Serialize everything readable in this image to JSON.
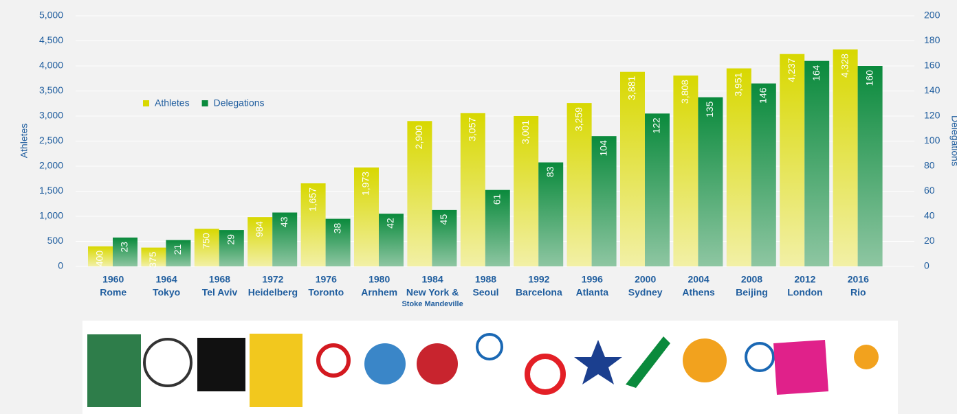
{
  "chart_data": {
    "type": "bar",
    "categories": [
      [
        "1960",
        "Rome"
      ],
      [
        "1964",
        "Tokyo"
      ],
      [
        "1968",
        "Tel Aviv"
      ],
      [
        "1972",
        "Heidelberg"
      ],
      [
        "1976",
        "Toronto"
      ],
      [
        "1980",
        "Arnhem"
      ],
      [
        "1984",
        "New York &",
        "Stoke Mandeville"
      ],
      [
        "1988",
        "Seoul"
      ],
      [
        "1992",
        "Barcelona"
      ],
      [
        "1996",
        "Atlanta"
      ],
      [
        "2000",
        "Sydney"
      ],
      [
        "2004",
        "Athens"
      ],
      [
        "2008",
        "Beijing"
      ],
      [
        "2012",
        "London"
      ],
      [
        "2016",
        "Rio"
      ]
    ],
    "series": [
      {
        "name": "Athletes",
        "color": "#d8d800",
        "values": [
          400,
          375,
          750,
          984,
          1657,
          1973,
          2900,
          3057,
          3001,
          3259,
          3881,
          3808,
          3951,
          4237,
          4328
        ],
        "value_labels": [
          "400",
          "375",
          "750",
          "984",
          "1,657",
          "1,973",
          "2,900",
          "3,057",
          "3,001",
          "3,259",
          "3,881",
          "3,808",
          "3,951",
          "4,237",
          "4,328"
        ]
      },
      {
        "name": "Delegations",
        "color": "#0a8a3c",
        "axis": "y2",
        "values": [
          23,
          21,
          29,
          43,
          38,
          42,
          45,
          61,
          83,
          104,
          122,
          135,
          146,
          164,
          160
        ]
      }
    ],
    "ylabel": "Athletes",
    "y2label": "Delegations",
    "ylim": [
      0,
      5000
    ],
    "yticks": [
      0,
      500,
      {
        "value": 1000,
        "label": "1,000"
      },
      {
        "value": 1500,
        "label": "1,500"
      },
      {
        "value": 2000,
        "label": "2,000"
      },
      {
        "value": 2500,
        "label": "2,500"
      },
      {
        "value": 3000,
        "label": "3,000"
      },
      {
        "value": 3500,
        "label": "3,500"
      },
      {
        "value": 4000,
        "label": "4,000"
      },
      {
        "value": 4500,
        "label": "4,500"
      },
      {
        "value": 5000,
        "label": "5,000"
      }
    ],
    "y2lim": [
      0,
      200
    ],
    "y2ticks": [
      0,
      20,
      40,
      60,
      80,
      100,
      120,
      140,
      160,
      180,
      200
    ],
    "grid": true,
    "legend": "upper left"
  }
}
